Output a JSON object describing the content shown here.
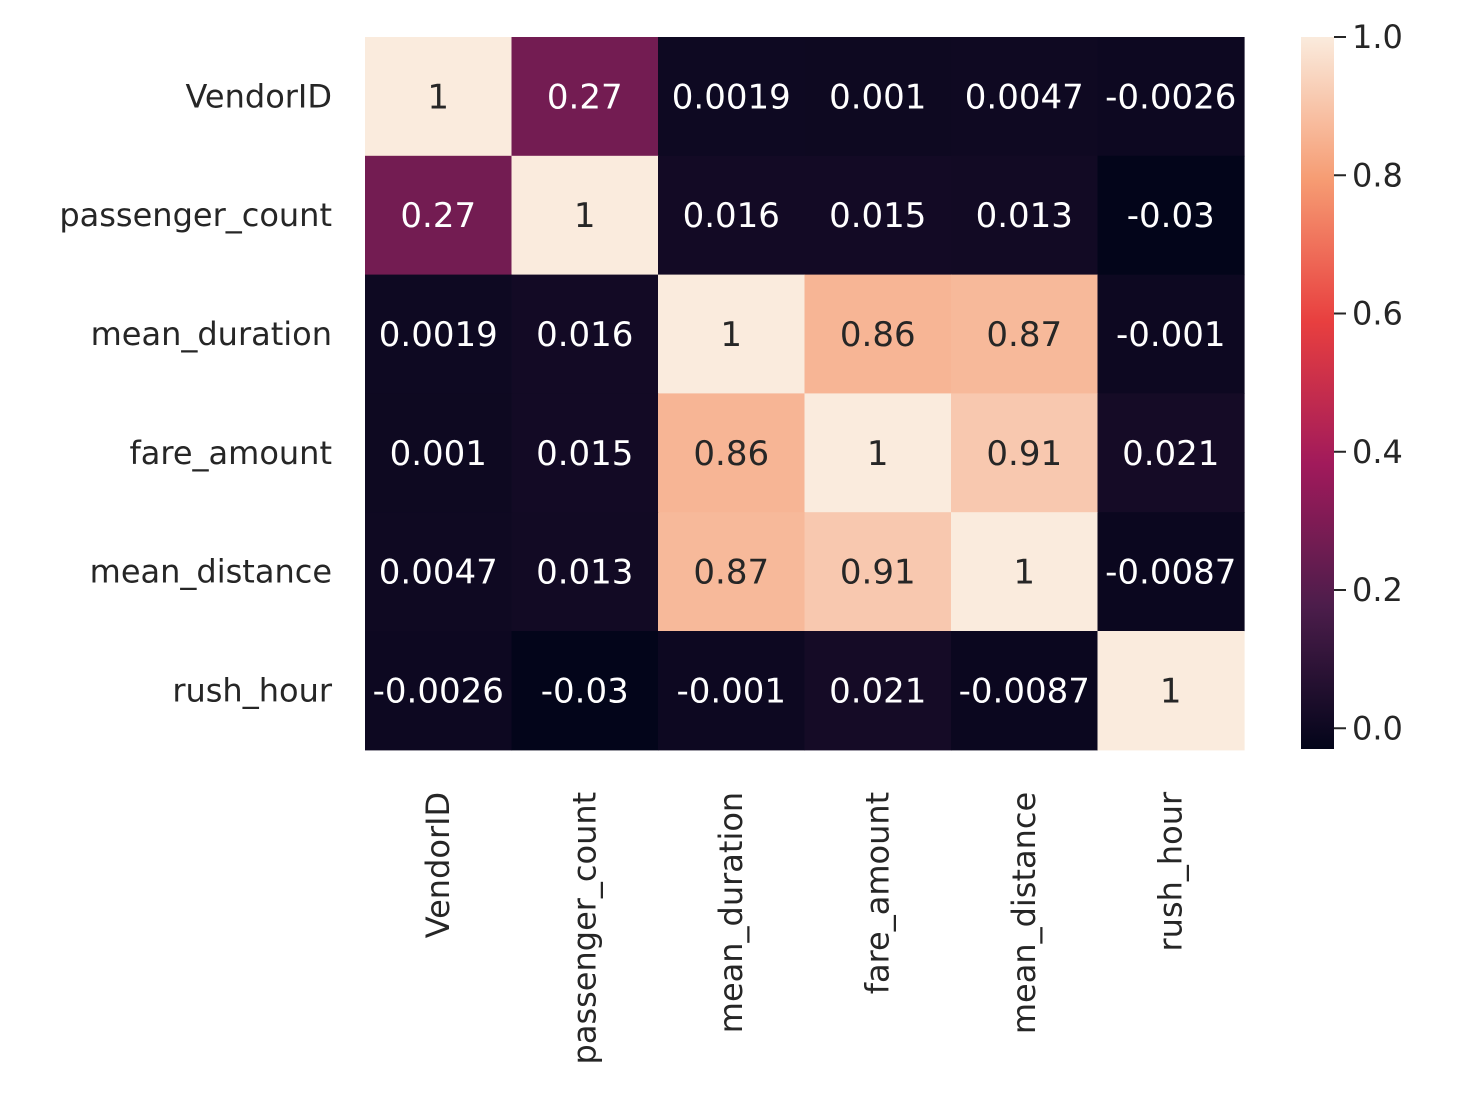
{
  "chart_data": {
    "type": "heatmap",
    "title": "",
    "xlabel": "",
    "ylabel": "",
    "row_labels": [
      "VendorID",
      "passenger_count",
      "mean_duration",
      "fare_amount",
      "mean_distance",
      "rush_hour"
    ],
    "col_labels": [
      "VendorID",
      "passenger_count",
      "mean_duration",
      "fare_amount",
      "mean_distance",
      "rush_hour"
    ],
    "values": [
      [
        1,
        0.27,
        0.0019,
        0.001,
        0.0047,
        -0.0026
      ],
      [
        0.27,
        1,
        0.016,
        0.015,
        0.013,
        -0.03
      ],
      [
        0.0019,
        0.016,
        1,
        0.86,
        0.87,
        -0.001
      ],
      [
        0.001,
        0.015,
        0.86,
        1,
        0.91,
        0.021
      ],
      [
        0.0047,
        0.013,
        0.87,
        0.91,
        1,
        -0.0087
      ],
      [
        -0.0026,
        -0.03,
        -0.001,
        0.021,
        -0.0087,
        1
      ]
    ],
    "annotations": [
      [
        "1",
        "0.27",
        "0.0019",
        "0.001",
        "0.0047",
        "-0.0026"
      ],
      [
        "0.27",
        "1",
        "0.016",
        "0.015",
        "0.013",
        "-0.03"
      ],
      [
        "0.0019",
        "0.016",
        "1",
        "0.86",
        "0.87",
        "-0.001"
      ],
      [
        "0.001",
        "0.015",
        "0.86",
        "1",
        "0.91",
        "0.021"
      ],
      [
        "0.0047",
        "0.013",
        "0.87",
        "0.91",
        "1",
        "-0.0087"
      ],
      [
        "-0.0026",
        "-0.03",
        "-0.001",
        "0.021",
        "-0.0087",
        "1"
      ]
    ],
    "colorbar": {
      "range": [
        -0.03,
        1.0
      ],
      "ticks": [
        0.0,
        0.2,
        0.4,
        0.6,
        0.8,
        1.0
      ],
      "tick_labels": [
        "0.0",
        "0.2",
        "0.4",
        "0.6",
        "0.8",
        "1.0"
      ],
      "colormap": "rocket",
      "color_stops": [
        "#03051a",
        "#4c1d4b",
        "#a11a5b",
        "#e83f3f",
        "#f69c73",
        "#faebdd"
      ]
    },
    "annotation_colors": {
      "on_dark": "#ffffff",
      "on_light": "#262626"
    },
    "grid": false,
    "legend": "colorbar-right"
  }
}
